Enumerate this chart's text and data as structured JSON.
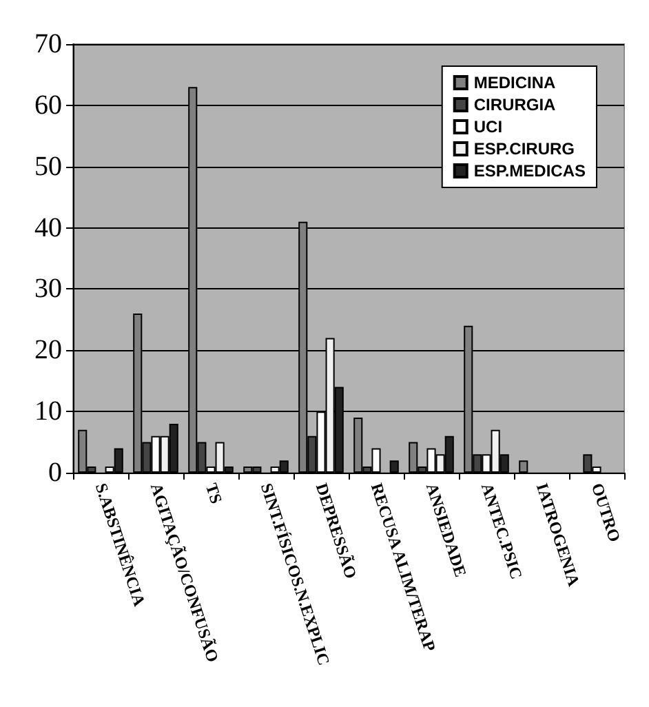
{
  "chart_data": {
    "type": "bar",
    "categories": [
      "S.ABSTINÊNCIA",
      "AGITAÇÃO/CONFUSÃO",
      "TS",
      "SINT.FÍSICOS.N.EXPLIC",
      "DEPRESSÃO",
      "RECUSA ALIM/TERAP",
      "ANSIEDADE",
      "ANTEC.PSIC",
      "IATROGENIA",
      "OUTRO"
    ],
    "series": [
      {
        "name": "MEDICINA",
        "color": "#808080",
        "values": [
          7,
          26,
          63,
          1,
          41,
          9,
          5,
          24,
          2,
          0
        ]
      },
      {
        "name": "CIRURGIA",
        "color": "#454545",
        "values": [
          1,
          5,
          5,
          1,
          6,
          1,
          1,
          3,
          0,
          3
        ]
      },
      {
        "name": "UCI",
        "color": "#ffffff",
        "values": [
          0,
          6,
          1,
          0,
          10,
          4,
          4,
          3,
          0,
          1
        ]
      },
      {
        "name": "ESP.CIRURG",
        "color": "#f0f0f0",
        "values": [
          1,
          6,
          5,
          1,
          22,
          0,
          3,
          7,
          0,
          0
        ]
      },
      {
        "name": "ESP.MEDICAS",
        "color": "#222222",
        "values": [
          4,
          8,
          1,
          2,
          14,
          2,
          6,
          3,
          0,
          0
        ]
      }
    ],
    "ylim": [
      0,
      70
    ],
    "yticks": [
      0,
      10,
      20,
      30,
      40,
      50,
      60,
      70
    ],
    "grid": "y",
    "legend": "top right"
  }
}
